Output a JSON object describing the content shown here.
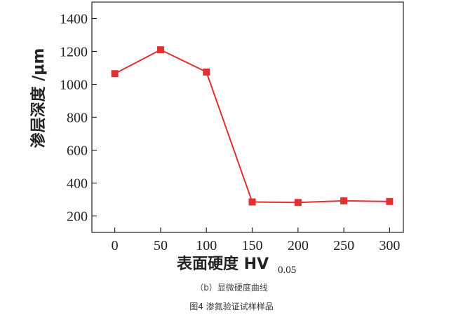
{
  "chart_data": {
    "type": "line",
    "x": [
      0,
      50,
      100,
      150,
      200,
      250,
      300
    ],
    "series": [
      {
        "values": [
          1065,
          1210,
          1075,
          285,
          282,
          292,
          288
        ],
        "color": "#e03030"
      }
    ],
    "xlabel": "表面硬度 HV",
    "xlabel_sub": "0.05",
    "ylabel": "渗层深度 /μm",
    "x_ticks": [
      "0",
      "50",
      "100",
      "150",
      "200",
      "250",
      "300"
    ],
    "y_ticks": [
      "200",
      "400",
      "600",
      "800",
      "1000",
      "1200",
      "1400"
    ],
    "xlim": [
      -25,
      315
    ],
    "ylim": [
      100,
      1500
    ],
    "grid": false,
    "marker": "square"
  },
  "captions": {
    "subfigure": "（b）显微硬度曲线",
    "figure": "图4  渗氮验证试样样品"
  }
}
